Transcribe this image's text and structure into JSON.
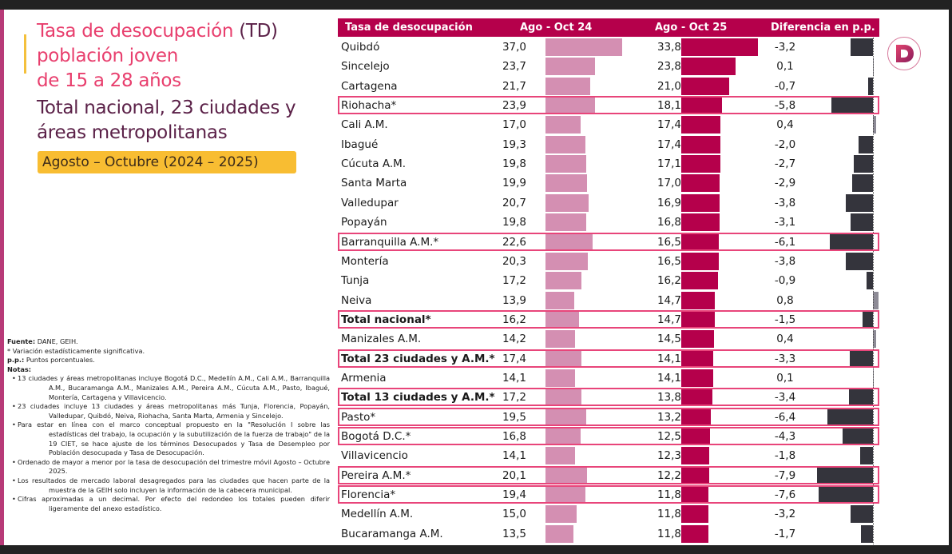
{
  "title": {
    "line1_pink": "Tasa de desocupación ",
    "line1_plum": "(TD)",
    "line2": "población joven",
    "line3": "de 15 a 28 años",
    "line4": "Total nacional, 23 ciudades y",
    "line5": "áreas metropolitanas",
    "period": "Agosto – Octubre (2024 – 2025)"
  },
  "notes": {
    "source_label": "Fuente:",
    "source_text": " DANE, GEIH.",
    "significance": "* Variación estadísticamente significativa.",
    "pp_label": "p.p.:",
    "pp_text": " Puntos porcentuales.",
    "notes_label": "Notas:",
    "items": [
      "13 ciudades y áreas metropolitanas incluye Bogotá D.C., Medellín A.M., Cali A.M., Barranquilla A.M., Bucaramanga A.M., Manizales A.M., Pereira A.M., Cúcuta A.M., Pasto, Ibagué, Montería, Cartagena y Villavicencio.",
      "23 ciudades incluye 13 ciudades y áreas metropolitanas más Tunja, Florencia, Popayán, Valledupar, Quibdó, Neiva, Riohacha, Santa Marta, Armenia y Sincelejo.",
      "Para estar en línea con el marco conceptual propuesto en la \"Resolución I sobre las estadísticas del trabajo, la ocupación y la subutilización de la fuerza de trabajo\" de la 19 CIET, se hace ajuste de los términos Desocupados y Tasa de Desempleo por Población desocupada y Tasa de Desocupación.",
      "Ordenado de mayor a menor por la tasa de desocupación del trimestre móvil Agosto – Octubre 2025.",
      "Los resultados de mercado laboral desagregados para las ciudades que hacen parte de la muestra de la GEIH solo incluyen la información de la cabecera municipal.",
      "Cifras aproximadas a un decimal. Por efecto del redondeo los totales pueden diferir ligeramente del anexo estadístico."
    ]
  },
  "colors": {
    "header_bg": "#b5004b",
    "bar_2024": "#d48fb2",
    "bar_2025": "#b5004b",
    "diff_negative": "#34343c",
    "diff_positive": "#8d8b96",
    "highlight_border": "#e8457a",
    "period_badge": "#f8bd32"
  },
  "logo": {
    "icon": "dane-d-logo-icon"
  },
  "chart_data": {
    "type": "table",
    "title": "Tasa de desocupación (TD) población joven de 15 a 28 años — Total nacional, 23 ciudades y áreas metropolitanas",
    "subtitle": "Agosto – Octubre (2024 – 2025)",
    "columns": [
      "Tasa de desocupación",
      "Ago - Oct 24",
      "Ago - Oct 25",
      "Diferencia en p.p."
    ],
    "series": [
      {
        "name": "Ago - Oct 24",
        "type": "bar"
      },
      {
        "name": "Ago - Oct 25",
        "type": "bar"
      },
      {
        "name": "Diferencia en p.p.",
        "type": "bar"
      }
    ],
    "rows": [
      {
        "name": "Quibdó",
        "v24": "37,0",
        "v25": "33,8",
        "diff": "-3,2",
        "n24": 37.0,
        "n25": 33.8,
        "nd": -3.2,
        "bold": false,
        "highlight": false
      },
      {
        "name": "Sincelejo",
        "v24": "23,7",
        "v25": "23,8",
        "diff": "0,1",
        "n24": 23.7,
        "n25": 23.8,
        "nd": 0.1,
        "bold": false,
        "highlight": false
      },
      {
        "name": "Cartagena",
        "v24": "21,7",
        "v25": "21,0",
        "diff": "-0,7",
        "n24": 21.7,
        "n25": 21.0,
        "nd": -0.7,
        "bold": false,
        "highlight": false
      },
      {
        "name": "Riohacha*",
        "v24": "23,9",
        "v25": "18,1",
        "diff": "-5,8",
        "n24": 23.9,
        "n25": 18.1,
        "nd": -5.8,
        "bold": false,
        "highlight": true
      },
      {
        "name": "Cali A.M.",
        "v24": "17,0",
        "v25": "17,4",
        "diff": "0,4",
        "n24": 17.0,
        "n25": 17.4,
        "nd": 0.4,
        "bold": false,
        "highlight": false
      },
      {
        "name": "Ibagué",
        "v24": "19,3",
        "v25": "17,4",
        "diff": "-2,0",
        "n24": 19.3,
        "n25": 17.4,
        "nd": -2.0,
        "bold": false,
        "highlight": false
      },
      {
        "name": "Cúcuta A.M.",
        "v24": "19,8",
        "v25": "17,1",
        "diff": "-2,7",
        "n24": 19.8,
        "n25": 17.1,
        "nd": -2.7,
        "bold": false,
        "highlight": false
      },
      {
        "name": "Santa Marta",
        "v24": "19,9",
        "v25": "17,0",
        "diff": "-2,9",
        "n24": 19.9,
        "n25": 17.0,
        "nd": -2.9,
        "bold": false,
        "highlight": false
      },
      {
        "name": "Valledupar",
        "v24": "20,7",
        "v25": "16,9",
        "diff": "-3,8",
        "n24": 20.7,
        "n25": 16.9,
        "nd": -3.8,
        "bold": false,
        "highlight": false
      },
      {
        "name": "Popayán",
        "v24": "19,8",
        "v25": "16,8",
        "diff": "-3,1",
        "n24": 19.8,
        "n25": 16.8,
        "nd": -3.1,
        "bold": false,
        "highlight": false
      },
      {
        "name": "Barranquilla A.M.*",
        "v24": "22,6",
        "v25": "16,5",
        "diff": "-6,1",
        "n24": 22.6,
        "n25": 16.5,
        "nd": -6.1,
        "bold": false,
        "highlight": true
      },
      {
        "name": "Montería",
        "v24": "20,3",
        "v25": "16,5",
        "diff": "-3,8",
        "n24": 20.3,
        "n25": 16.5,
        "nd": -3.8,
        "bold": false,
        "highlight": false
      },
      {
        "name": "Tunja",
        "v24": "17,2",
        "v25": "16,2",
        "diff": "-0,9",
        "n24": 17.2,
        "n25": 16.2,
        "nd": -0.9,
        "bold": false,
        "highlight": false
      },
      {
        "name": "Neiva",
        "v24": "13,9",
        "v25": "14,7",
        "diff": "0,8",
        "n24": 13.9,
        "n25": 14.7,
        "nd": 0.8,
        "bold": false,
        "highlight": false
      },
      {
        "name": "Total nacional*",
        "v24": "16,2",
        "v25": "14,7",
        "diff": "-1,5",
        "n24": 16.2,
        "n25": 14.7,
        "nd": -1.5,
        "bold": true,
        "highlight": true
      },
      {
        "name": "Manizales A.M.",
        "v24": "14,2",
        "v25": "14,5",
        "diff": "0,4",
        "n24": 14.2,
        "n25": 14.5,
        "nd": 0.4,
        "bold": false,
        "highlight": false
      },
      {
        "name": "Total 23 ciudades y A.M.*",
        "v24": "17,4",
        "v25": "14,1",
        "diff": "-3,3",
        "n24": 17.4,
        "n25": 14.1,
        "nd": -3.3,
        "bold": true,
        "highlight": true
      },
      {
        "name": "Armenia",
        "v24": "14,1",
        "v25": "14,1",
        "diff": "0,1",
        "n24": 14.1,
        "n25": 14.1,
        "nd": 0.1,
        "bold": false,
        "highlight": false
      },
      {
        "name": "Total 13 ciudades y A.M.*",
        "v24": "17,2",
        "v25": "13,8",
        "diff": "-3,4",
        "n24": 17.2,
        "n25": 13.8,
        "nd": -3.4,
        "bold": true,
        "highlight": true
      },
      {
        "name": "Pasto*",
        "v24": "19,5",
        "v25": "13,2",
        "diff": "-6,4",
        "n24": 19.5,
        "n25": 13.2,
        "nd": -6.4,
        "bold": false,
        "highlight": true
      },
      {
        "name": "Bogotá D.C.*",
        "v24": "16,8",
        "v25": "12,5",
        "diff": "-4,3",
        "n24": 16.8,
        "n25": 12.5,
        "nd": -4.3,
        "bold": false,
        "highlight": true
      },
      {
        "name": "Villavicencio",
        "v24": "14,1",
        "v25": "12,3",
        "diff": "-1,8",
        "n24": 14.1,
        "n25": 12.3,
        "nd": -1.8,
        "bold": false,
        "highlight": false
      },
      {
        "name": "Pereira A.M.*",
        "v24": "20,1",
        "v25": "12,2",
        "diff": "-7,9",
        "n24": 20.1,
        "n25": 12.2,
        "nd": -7.9,
        "bold": false,
        "highlight": true
      },
      {
        "name": "Florencia*",
        "v24": "19,4",
        "v25": "11,8",
        "diff": "-7,6",
        "n24": 19.4,
        "n25": 11.8,
        "nd": -7.6,
        "bold": false,
        "highlight": true
      },
      {
        "name": "Medellín A.M.",
        "v24": "15,0",
        "v25": "11,8",
        "diff": "-3,2",
        "n24": 15.0,
        "n25": 11.8,
        "nd": -3.2,
        "bold": false,
        "highlight": false
      },
      {
        "name": "Bucaramanga A.M.",
        "v24": "13,5",
        "v25": "11,8",
        "diff": "-1,7",
        "n24": 13.5,
        "n25": 11.8,
        "nd": -1.7,
        "bold": false,
        "highlight": false
      }
    ]
  }
}
